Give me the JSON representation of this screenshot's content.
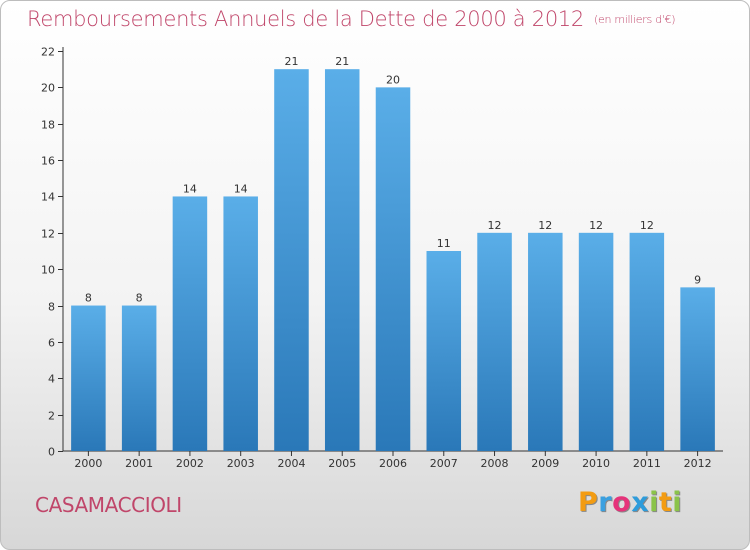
{
  "header": {
    "title": "Remboursements Annuels de la Dette de 2000 à 2012",
    "subtitle": "(en milliers d'€)"
  },
  "footer": {
    "commune": "CASAMACCIOLI",
    "logo": [
      "P",
      "r",
      "o",
      "x",
      "i",
      "t",
      "i"
    ],
    "logo_colors": [
      "#f39c12",
      "#3aa0e0",
      "#e5337a",
      "#2e9cdb",
      "#8bc34a",
      "#f39c12",
      "#8bc34a"
    ]
  },
  "colors": {
    "bar_top": "#5aaee8",
    "bar_bottom": "#2a78b8",
    "axis": "#333333",
    "title": "#c0466a"
  },
  "chart_data": {
    "type": "bar",
    "categories": [
      "2000",
      "2001",
      "2002",
      "2003",
      "2004",
      "2005",
      "2006",
      "2007",
      "2008",
      "2009",
      "2010",
      "2011",
      "2012"
    ],
    "values": [
      8,
      8,
      14,
      14,
      21,
      21,
      20,
      11,
      12,
      12,
      12,
      12,
      9
    ],
    "title": "Remboursements Annuels de la Dette de 2000 à 2012",
    "subtitle": "(en milliers d'€)",
    "ylim": [
      0,
      22
    ],
    "yticks": [
      0,
      2,
      4,
      6,
      8,
      10,
      12,
      14,
      16,
      18,
      20,
      22
    ],
    "grid": false,
    "data_labels": true
  }
}
